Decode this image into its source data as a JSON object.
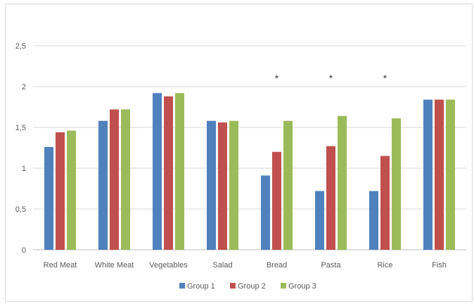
{
  "chart_data": {
    "type": "bar",
    "categories": [
      "Red Meat",
      "White Meat",
      "Vegetables",
      "Salad",
      "Bread",
      "Pasta",
      "Rice",
      "Fish"
    ],
    "series": [
      {
        "name": "Group 1",
        "color": "#4f81bd",
        "values": [
          1.26,
          1.58,
          1.92,
          1.58,
          0.91,
          0.72,
          0.72,
          1.84
        ]
      },
      {
        "name": "Group 2",
        "color": "#c0504d",
        "values": [
          1.44,
          1.72,
          1.88,
          1.56,
          1.2,
          1.27,
          1.15,
          1.84
        ]
      },
      {
        "name": "Group 3",
        "color": "#9bbb59",
        "values": [
          1.46,
          1.72,
          1.92,
          1.58,
          1.58,
          1.64,
          1.61,
          1.84
        ]
      }
    ],
    "ylim": [
      0,
      2.5
    ],
    "yticks": [
      "0",
      "0,5",
      "1",
      "1,5",
      "2",
      "2,5"
    ],
    "yticks_values": [
      0,
      0.5,
      1,
      1.5,
      2,
      2.5
    ],
    "annotations": [
      {
        "category": "Bread",
        "text": "*"
      },
      {
        "category": "Pasta",
        "text": "*"
      },
      {
        "category": "Rice",
        "text": "*"
      }
    ],
    "grid": true,
    "legend_position": "bottom"
  }
}
